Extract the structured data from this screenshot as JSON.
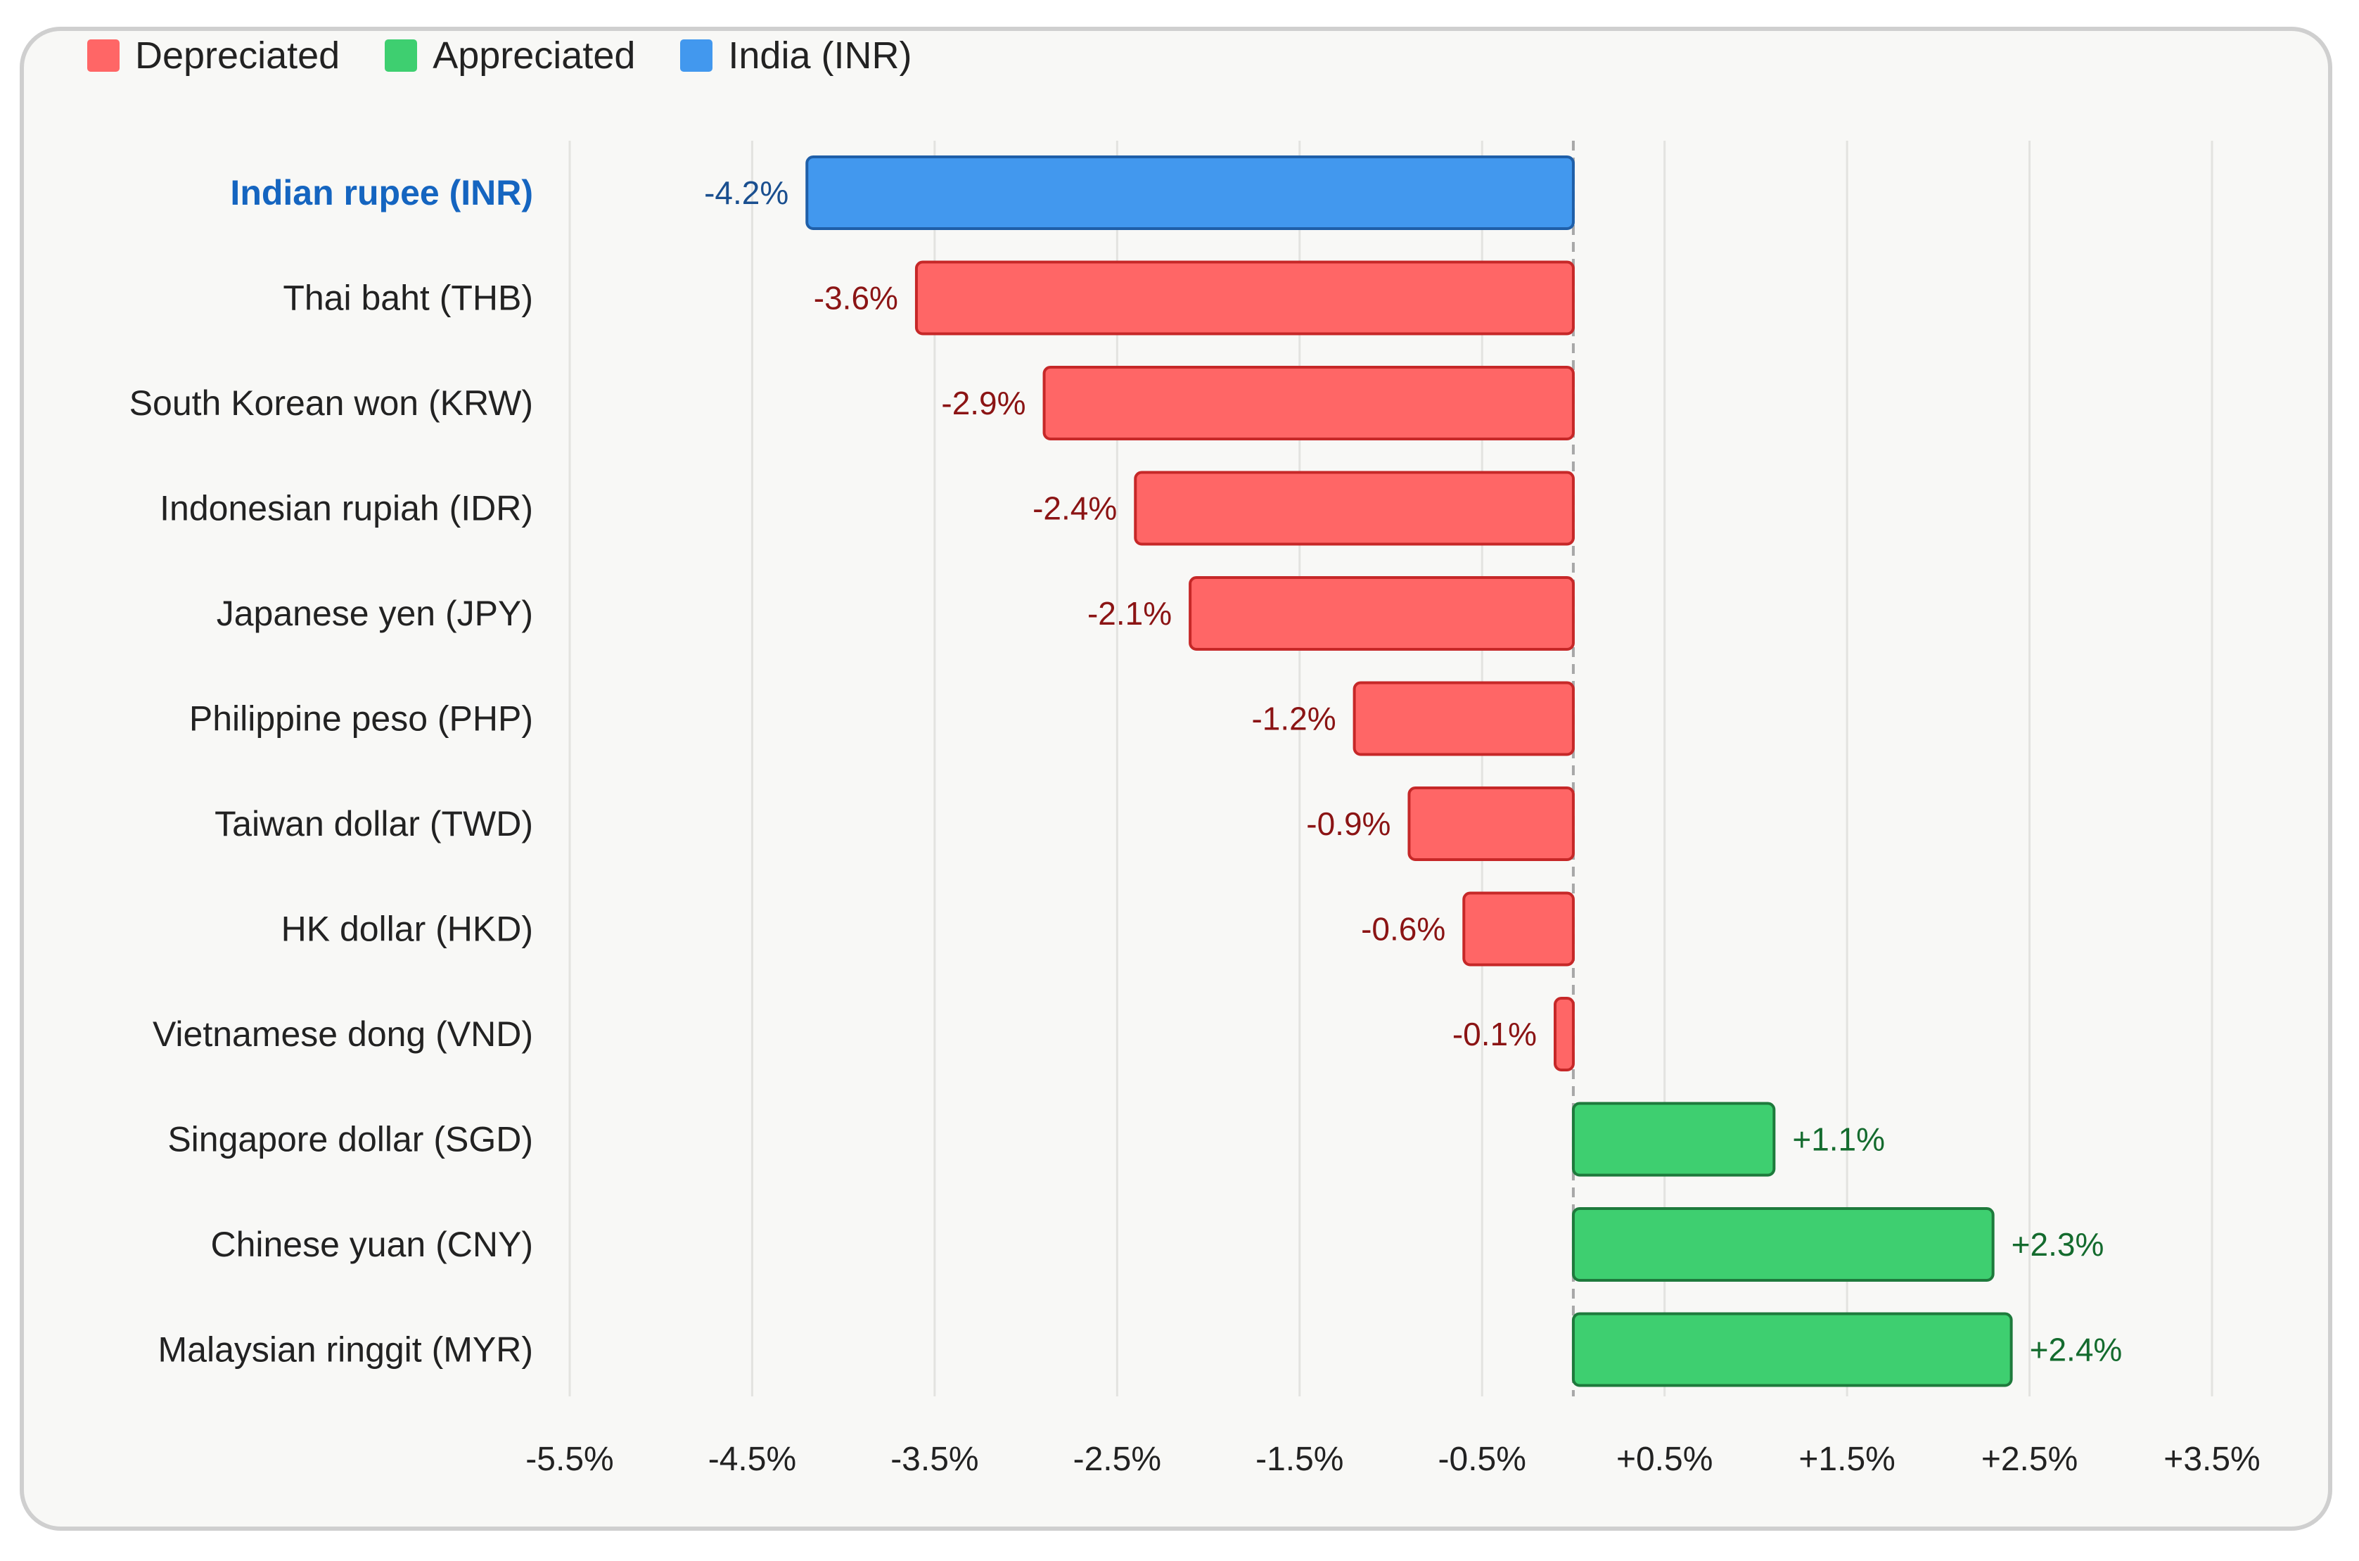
{
  "legend": {
    "items": [
      {
        "label": "Depreciated",
        "color": "#ff6666"
      },
      {
        "label": "Appreciated",
        "color": "#3ecf70"
      },
      {
        "label": "India (INR)",
        "color": "#4298ee"
      }
    ]
  },
  "colors": {
    "depreciated_fill": "#ff6666",
    "depreciated_stroke": "#c62828",
    "depreciated_text": "#8b1414",
    "appreciated_fill": "#3ecf70",
    "appreciated_stroke": "#1e7a3c",
    "appreciated_text": "#146b2e",
    "india_fill": "#4298ee",
    "india_stroke": "#1f5fa8",
    "india_text": "#1a4f8f"
  },
  "chart_data": {
    "type": "bar",
    "orientation": "horizontal",
    "categories": [
      "Indian rupee (INR)",
      "Thai baht (THB)",
      "South Korean won (KRW)",
      "Indonesian rupiah (IDR)",
      "Japanese yen (JPY)",
      "Philippine peso (PHP)",
      "Taiwan dollar (TWD)",
      "HK dollar (HKD)",
      "Vietnamese dong (VND)",
      "Singapore dollar (SGD)",
      "Chinese yuan (CNY)",
      "Malaysian ringgit (MYR)"
    ],
    "values": [
      -4.2,
      -3.6,
      -2.9,
      -2.4,
      -2.1,
      -1.2,
      -0.9,
      -0.6,
      -0.1,
      1.1,
      2.3,
      2.4
    ],
    "value_labels": [
      "-4.2%",
      "-3.6%",
      "-2.9%",
      "-2.4%",
      "-2.1%",
      "-1.2%",
      "-0.9%",
      "-0.6%",
      "-0.1%",
      "+1.1%",
      "+2.3%",
      "+2.4%"
    ],
    "highlight_category": "Indian rupee (INR)",
    "x_ticks": [
      -5.5,
      -4.5,
      -3.5,
      -2.5,
      -1.5,
      -0.5,
      0.5,
      1.5,
      2.5,
      3.5
    ],
    "x_tick_labels": [
      "-5.5%",
      "-4.5%",
      "-3.5%",
      "-2.5%",
      "-1.5%",
      "-0.5%",
      "+0.5%",
      "+1.5%",
      "+2.5%",
      "+3.5%"
    ],
    "xlim": [
      -5.5,
      3.5
    ],
    "grid": true,
    "legend_position": "top-left",
    "title": "",
    "xlabel": "",
    "ylabel": ""
  }
}
